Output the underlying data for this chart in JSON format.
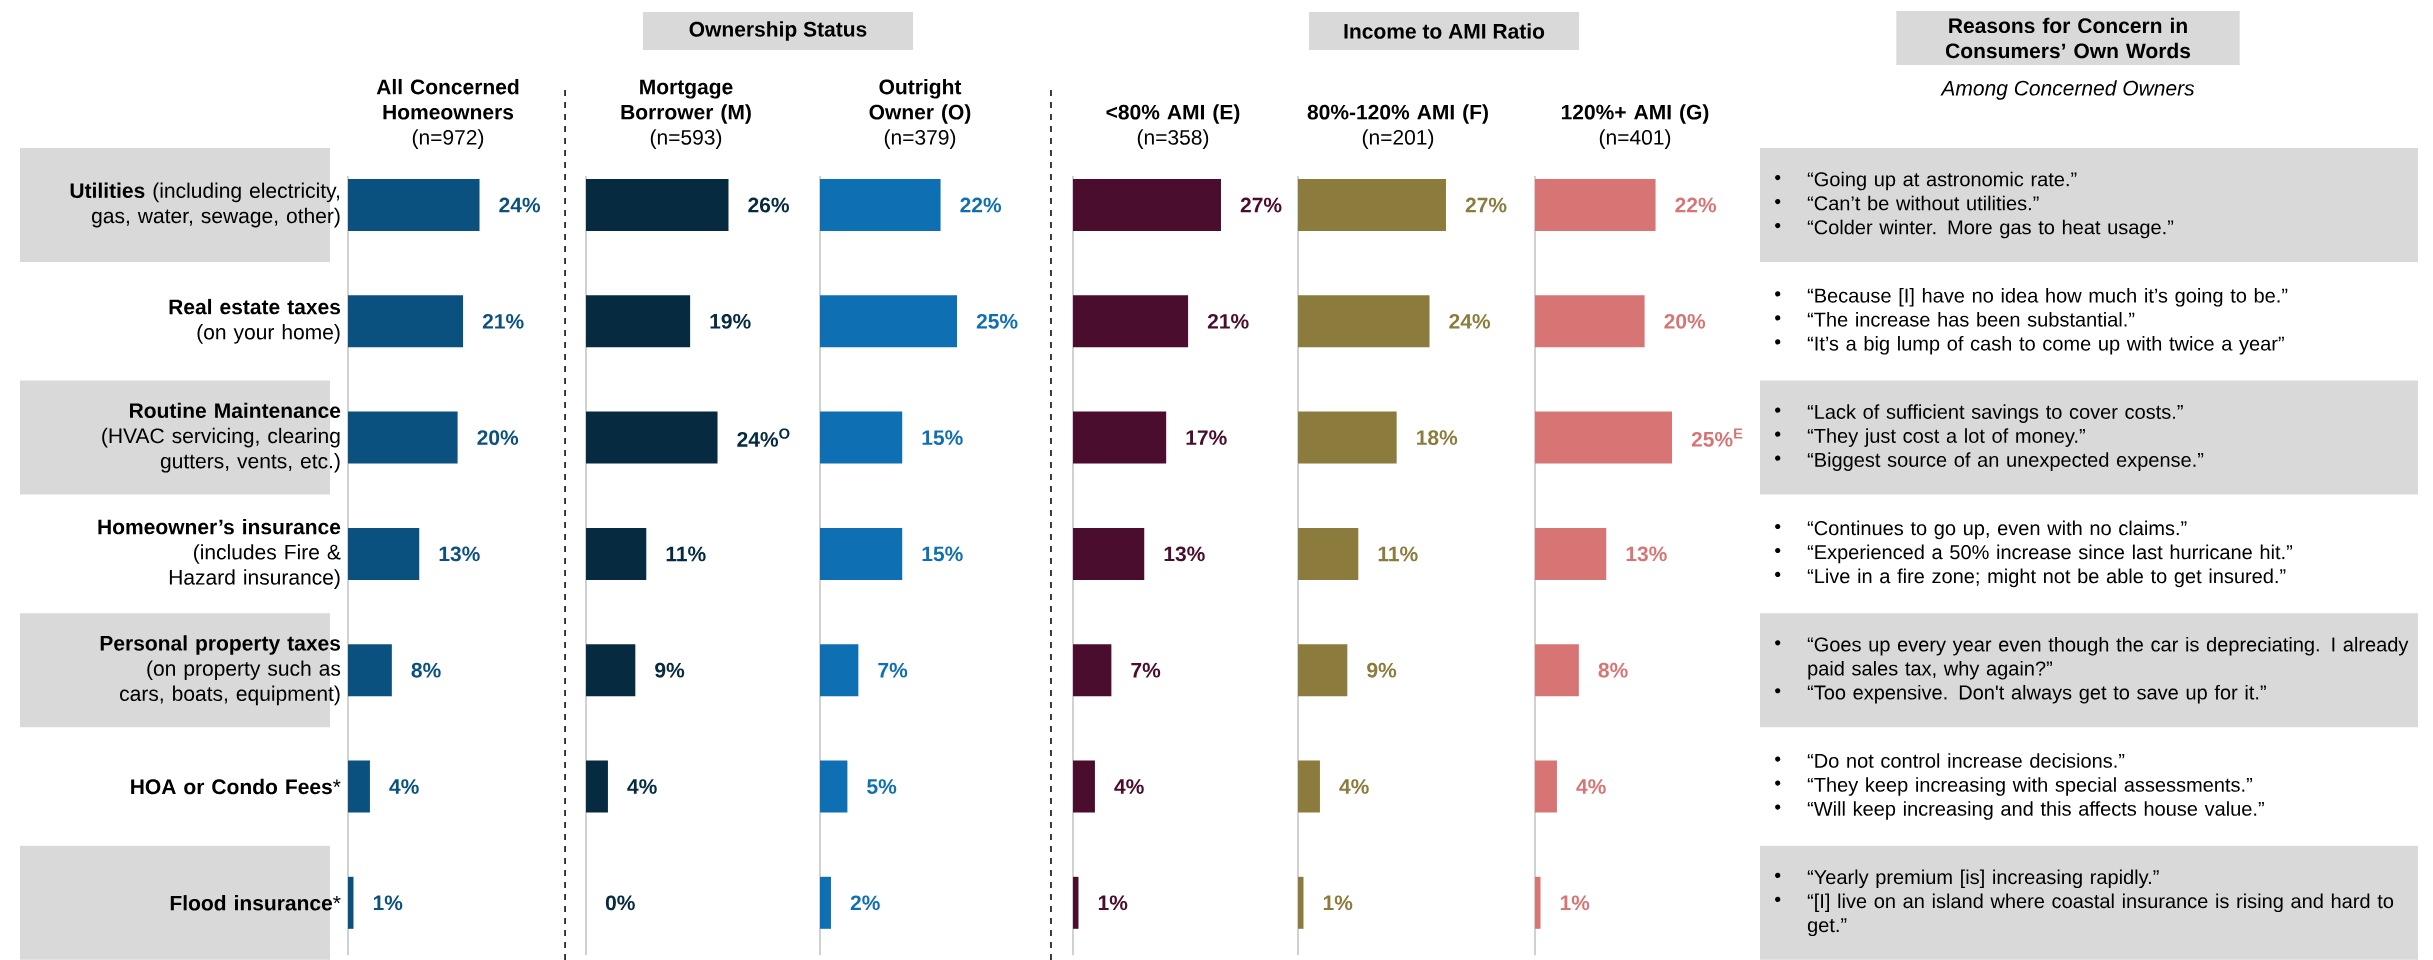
{
  "chart_data": [
    {
      "type": "bar",
      "orientation": "horizontal",
      "title": "All Concerned Homeowners",
      "subtitle": "(n=972)",
      "categories": [
        "**Utilities** (including electricity, gas, water, sewage, other)",
        "**Real estate taxes** (on your home)",
        "**Routine Maintenance** (HVAC servicing, clearing gutters, vents, etc.)",
        "**Homeowner’s insurance** (includes Fire & Hazard insurance)",
        "**Personal property taxes** (on property such as cars, boats, equipment)",
        "**HOA or Condo Fees***",
        "**Flood insurance***"
      ],
      "values": [
        24,
        21,
        20,
        13,
        8,
        4,
        1
      ],
      "color": "#0b5180",
      "value_labels": [
        "24%",
        "21%",
        "20%",
        "13%",
        "8%",
        "4%",
        "1%"
      ]
    },
    {
      "type": "bar",
      "orientation": "horizontal",
      "title": "Mortgage Borrower (M)",
      "subtitle": "(n=593)",
      "categories": [
        null,
        null,
        null,
        null,
        null,
        null,
        null
      ],
      "values": [
        26,
        19,
        24,
        11,
        9,
        4,
        0
      ],
      "color": "#062a40",
      "value_labels": [
        "26%",
        "19%",
        "24%$^{O}$",
        "11%",
        "9%",
        "4%",
        "0%"
      ],
      "annotations": [
        "Ownership Status"
      ]
    },
    {
      "type": "bar",
      "orientation": "horizontal",
      "title": "Outright Owner (O)",
      "subtitle": "(n=379)",
      "categories": [
        null,
        null,
        null,
        null,
        null,
        null,
        null
      ],
      "values": [
        22,
        25,
        15,
        15,
        7,
        5,
        2
      ],
      "color": "#0f6fb3",
      "value_labels": [
        "22%",
        "25%",
        "15%",
        "15%",
        "7%",
        "5%",
        "2%"
      ]
    },
    {
      "type": "bar",
      "orientation": "horizontal",
      "title": "<80% AMI (E)",
      "subtitle": "(n=358)",
      "categories": [
        null,
        null,
        null,
        null,
        null,
        null,
        null
      ],
      "values": [
        27,
        21,
        17,
        13,
        7,
        4,
        1
      ],
      "color": "#4a0d2d",
      "value_labels": [
        "27%",
        "21%",
        "17%",
        "13%",
        "7%",
        "4%",
        "1%"
      ],
      "annotations": [
        "Income to AMI Ratio"
      ]
    },
    {
      "type": "bar",
      "orientation": "horizontal",
      "title": "80%-120% AMI (F)",
      "subtitle": "(n=201)",
      "categories": [
        null,
        null,
        null,
        null,
        null,
        null,
        null
      ],
      "values": [
        27,
        24,
        18,
        11,
        9,
        4,
        1
      ],
      "color": "#8b7b3c",
      "value_labels": [
        "27%",
        "24%",
        "18%",
        "11%",
        "9%",
        "4%",
        "1%"
      ]
    },
    {
      "type": "bar",
      "orientation": "horizontal",
      "title": "120%+ AMI (G)",
      "subtitle": "(n=401)",
      "categories": [
        null,
        null,
        null,
        null,
        null,
        null,
        null
      ],
      "values": [
        22,
        20,
        25,
        13,
        8,
        4,
        1
      ],
      "color": "#d77575",
      "value_labels": [
        "22%",
        "20%",
        "25%$^{E}$",
        "13%",
        "8%",
        "4%",
        "1%"
      ]
    },
    {
      "type": "other",
      "title": "Reasons for Concern in Consumers’ Own Words",
      "subtitle": "Among Concerned Owners",
      "annotations": [
        "“Going up at astronomic rate.”",
        "“Can’t be without utilities.”",
        "“Colder winter. More gas to heat usage.”",
        "“Because [I] have no idea how much it’s going to be.”",
        "“The increase has been substantial.”",
        "“It’s a big lump of cash to come up with twice a year”",
        "“Lack of sufficient savings to cover costs.”",
        "“They just cost a lot of money.”",
        "“Biggest source of an unexpected expense.”",
        "“Continues to go up, even with no claims.”",
        "“Experienced a 50% increase since last hurricane hit.”",
        "“Live in a fire zone; might not be able to get insured.”",
        "“Goes up every year even though the car is depreciating. I already paid sales tax, why again?”",
        "“Too expensive. Don't always get to save up for it.”",
        "“Do not control increase decisions.”",
        "“They keep increasing with special assessments.”",
        "“Will keep increasing and this affects house value.”",
        "“Yearly premium [is] increasing rapidly.”",
        "“[I] live on an island where coastal insurance is rising and hard to get.”"
      ]
    }
  ]
}
